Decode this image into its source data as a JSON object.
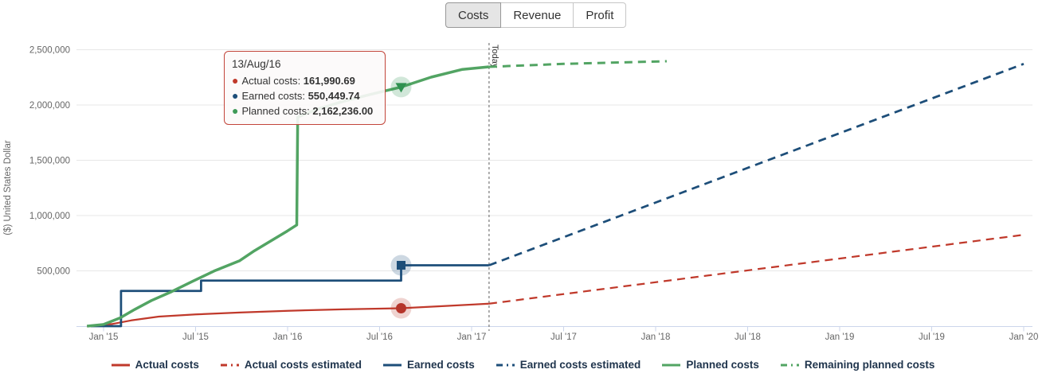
{
  "tabs": {
    "items": [
      {
        "label": "Costs",
        "active": true
      },
      {
        "label": "Revenue",
        "active": false
      },
      {
        "label": "Profit",
        "active": false
      }
    ]
  },
  "tooltip": {
    "title": "13/Aug/16",
    "rows": [
      {
        "label": "Actual costs",
        "value": "161,990.69",
        "color": "#c0392b"
      },
      {
        "label": "Earned costs",
        "value": "550,449.74",
        "color": "#1d4e79"
      },
      {
        "label": "Planned costs",
        "value": "2,162,236.00",
        "color": "#3f9a58"
      }
    ]
  },
  "chart_data": {
    "type": "line",
    "title": "",
    "xlabel": "",
    "ylabel": "($) United States Dollar",
    "ylim": [
      0,
      2550000
    ],
    "xlim": [
      2014.88,
      2020.03
    ],
    "grid": true,
    "legend_position": "bottom",
    "y_ticks": [
      {
        "v": 500000,
        "label": "500,000"
      },
      {
        "v": 1000000,
        "label": "1,000,000"
      },
      {
        "v": 1500000,
        "label": "1,500,000"
      },
      {
        "v": 2000000,
        "label": "2,000,000"
      },
      {
        "v": 2500000,
        "label": "2,500,000"
      }
    ],
    "x_ticks": [
      {
        "t": 2015.0,
        "label": "Jan '15"
      },
      {
        "t": 2015.5,
        "label": "Jul '15"
      },
      {
        "t": 2016.0,
        "label": "Jan '16"
      },
      {
        "t": 2016.5,
        "label": "Jul '16"
      },
      {
        "t": 2017.0,
        "label": "Jan '17"
      },
      {
        "t": 2017.5,
        "label": "Jul '17"
      },
      {
        "t": 2018.0,
        "label": "Jan '18"
      },
      {
        "t": 2018.5,
        "label": "Jul '18"
      },
      {
        "t": 2019.0,
        "label": "Jan '19"
      },
      {
        "t": 2019.5,
        "label": "Jul '19"
      },
      {
        "t": 2020.0,
        "label": "Jan '20"
      }
    ],
    "today": {
      "t": 2017.095,
      "label": "Today"
    },
    "series": [
      {
        "name": "Actual costs",
        "color": "#c0392b",
        "style": "solid",
        "width": 2.25,
        "points": [
          [
            2014.91,
            0
          ],
          [
            2015.05,
            20000
          ],
          [
            2015.15,
            52000
          ],
          [
            2015.3,
            86000
          ],
          [
            2015.5,
            106000
          ],
          [
            2015.74,
            123000
          ],
          [
            2016.0,
            139000
          ],
          [
            2016.3,
            152000
          ],
          [
            2016.617,
            161990.69
          ],
          [
            2016.85,
            182000
          ],
          [
            2017.095,
            203000
          ]
        ]
      },
      {
        "name": "Actual costs estimated",
        "color": "#c0392b",
        "style": "dash",
        "width": 2.25,
        "points": [
          [
            2017.095,
            203000
          ],
          [
            2020.0,
            826000
          ]
        ]
      },
      {
        "name": "Earned costs",
        "color": "#1d4e79",
        "style": "solid",
        "width": 2.75,
        "points": [
          [
            2014.93,
            0
          ],
          [
            2015.095,
            0
          ],
          [
            2015.095,
            318000
          ],
          [
            2015.53,
            318000
          ],
          [
            2015.53,
            412000
          ],
          [
            2016.617,
            412000
          ],
          [
            2016.617,
            550449.74
          ],
          [
            2017.095,
            550449.74
          ]
        ]
      },
      {
        "name": "Earned costs estimated",
        "color": "#1d4e79",
        "style": "dash",
        "width": 2.75,
        "points": [
          [
            2017.095,
            550449.74
          ],
          [
            2020.0,
            2372000
          ]
        ]
      },
      {
        "name": "Planned costs",
        "color": "#52a463",
        "style": "solid",
        "width": 3.5,
        "points": [
          [
            2014.91,
            0
          ],
          [
            2015.0,
            15000
          ],
          [
            2015.09,
            75000
          ],
          [
            2015.17,
            152000
          ],
          [
            2015.26,
            232000
          ],
          [
            2015.37,
            312000
          ],
          [
            2015.48,
            402000
          ],
          [
            2015.6,
            498000
          ],
          [
            2015.74,
            592000
          ],
          [
            2015.82,
            682000
          ],
          [
            2015.9,
            762000
          ],
          [
            2016.0,
            862000
          ],
          [
            2016.05,
            915000
          ],
          [
            2016.055,
            1890000
          ],
          [
            2016.15,
            1956000
          ],
          [
            2016.3,
            2032000
          ],
          [
            2016.45,
            2096000
          ],
          [
            2016.617,
            2162236
          ],
          [
            2016.78,
            2252000
          ],
          [
            2016.95,
            2322000
          ],
          [
            2017.095,
            2345000
          ]
        ]
      },
      {
        "name": "Remaining planned costs",
        "color": "#52a463",
        "style": "dash",
        "width": 3,
        "points": [
          [
            2017.095,
            2345000
          ],
          [
            2017.5,
            2372000
          ],
          [
            2018.06,
            2396000
          ]
        ]
      }
    ],
    "markers": [
      {
        "series": "Planned costs",
        "shape": "triangle-down",
        "t": 2016.617,
        "v": 2162236,
        "color": "#2f9150"
      },
      {
        "series": "Earned costs",
        "shape": "square",
        "t": 2016.617,
        "v": 550449.74,
        "color": "#1d4e79"
      },
      {
        "series": "Actual costs",
        "shape": "circle",
        "t": 2016.617,
        "v": 161990.69,
        "color": "#b5352b"
      }
    ],
    "colors": {
      "gridline": "#e7e7e7",
      "axis_line": "#ccd6eb",
      "today_line": "#777777"
    }
  }
}
